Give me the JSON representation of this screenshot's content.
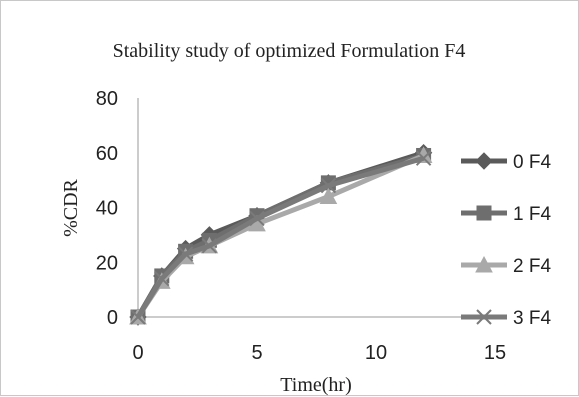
{
  "chart_data": {
    "type": "line",
    "title": "Stability study of optimized Formulation F4",
    "xlabel": "Time(hr)",
    "ylabel": "%CDR",
    "xlim": [
      0,
      15
    ],
    "ylim": [
      0,
      80
    ],
    "x_ticks": [
      "0",
      "5",
      "10",
      "15"
    ],
    "y_ticks": [
      "0",
      "20",
      "40",
      "60",
      "80"
    ],
    "x": [
      0,
      1,
      2,
      3,
      5,
      8,
      12
    ],
    "grid": false,
    "legend_position": "right",
    "series": [
      {
        "name": "0 F4",
        "values": [
          0,
          15,
          25,
          30,
          37,
          49,
          60
        ],
        "color": "#5a5a5a",
        "marker": "diamond"
      },
      {
        "name": "1 F4",
        "values": [
          0,
          15,
          24,
          28,
          37,
          49,
          59
        ],
        "color": "#6e6e6e",
        "marker": "square"
      },
      {
        "name": "2 F4",
        "values": [
          0,
          13,
          22,
          26,
          34,
          44,
          59
        ],
        "color": "#a9a9a9",
        "marker": "triangle"
      },
      {
        "name": "3 F4",
        "values": [
          0,
          14,
          23,
          26,
          36,
          48,
          58
        ],
        "color": "#7a7a7a",
        "marker": "x"
      }
    ]
  }
}
